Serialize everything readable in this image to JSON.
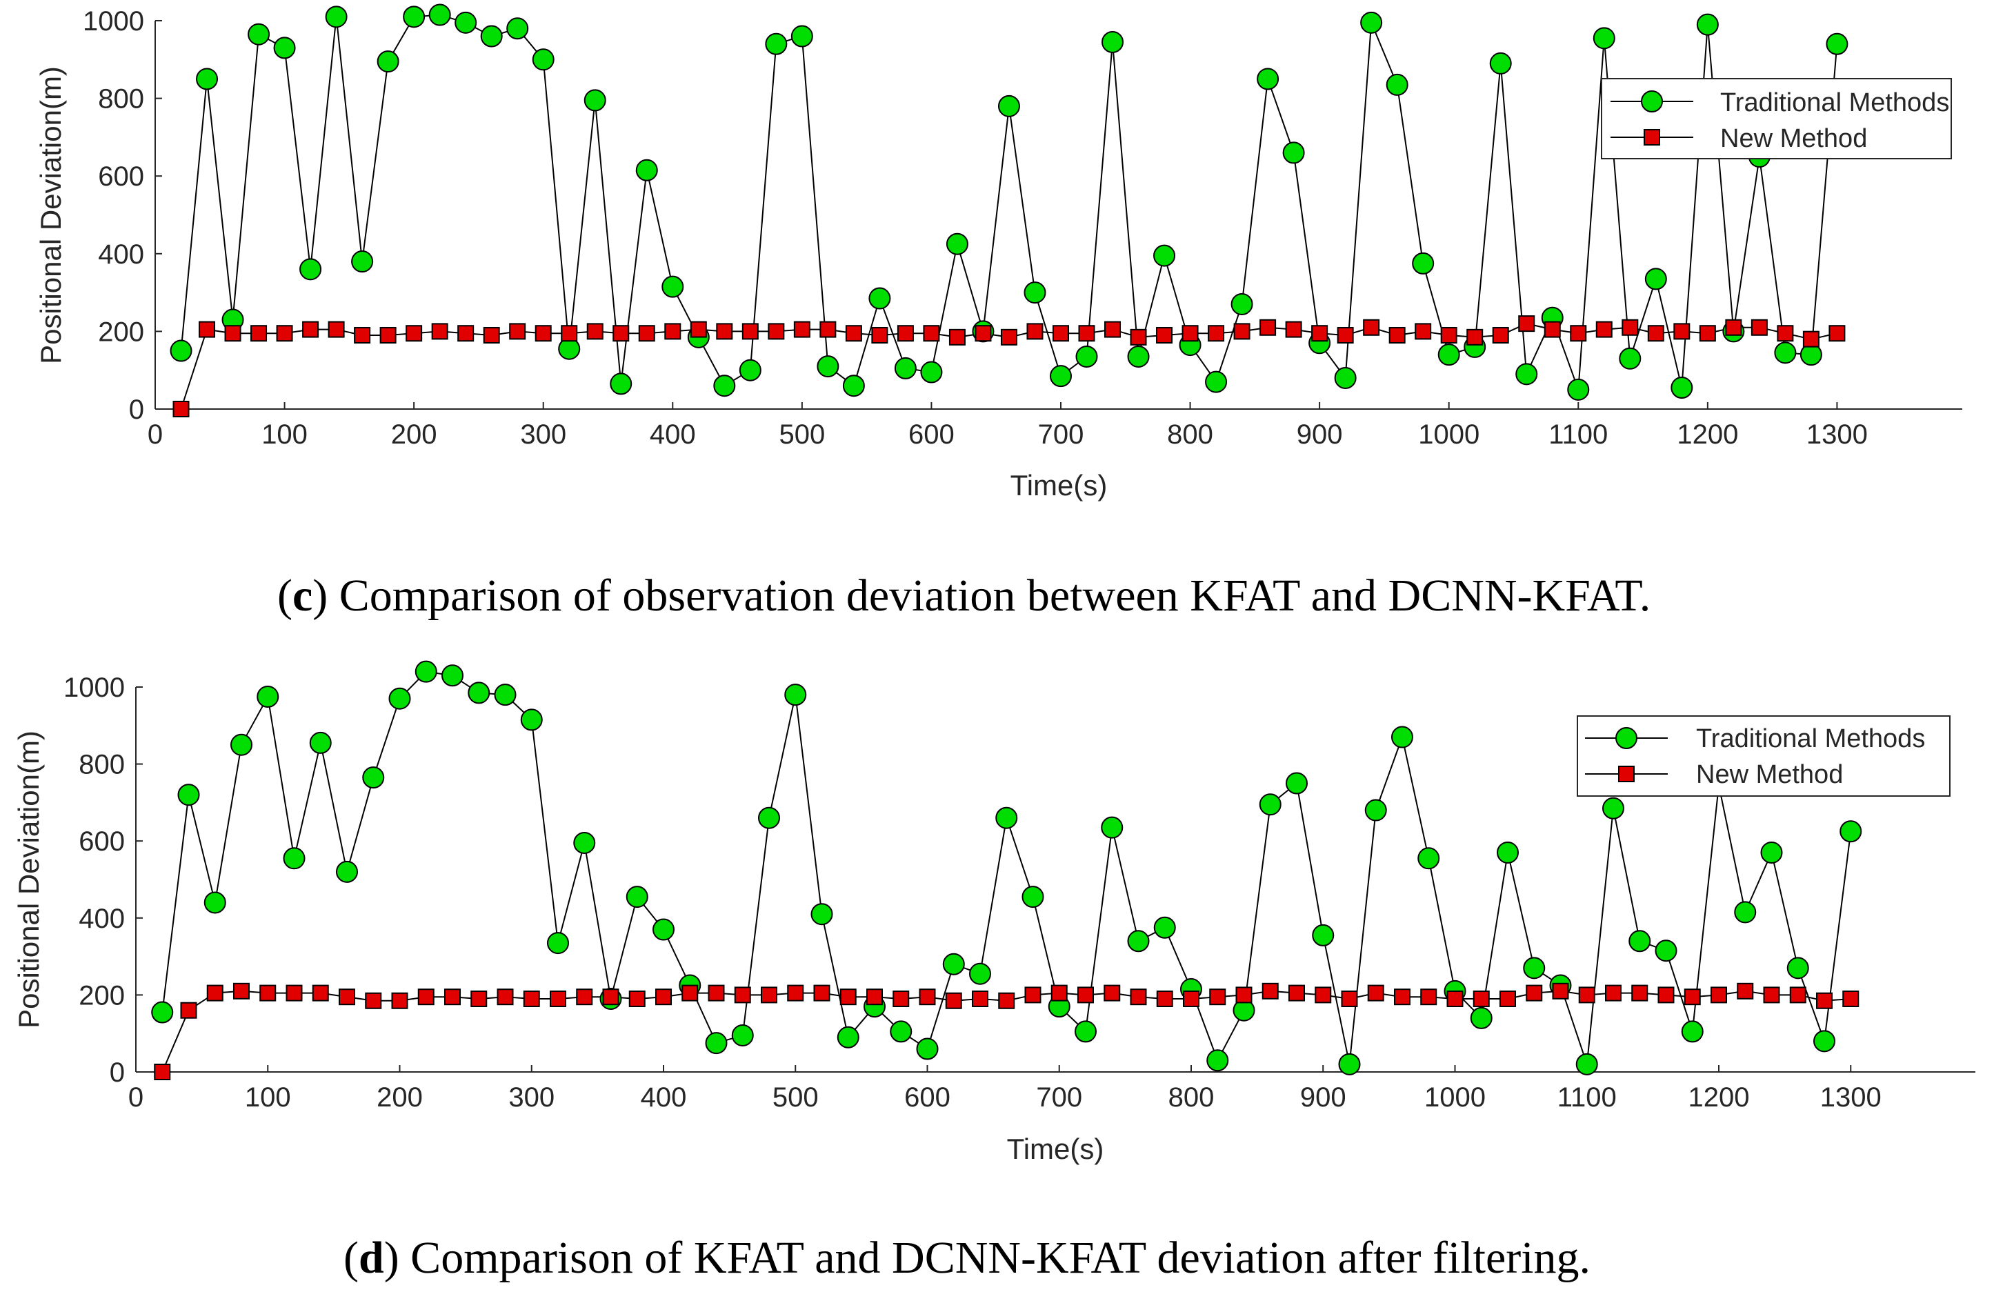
{
  "colors": {
    "traditional_fill": "#00dd00",
    "new_fill": "#e00000",
    "line": "#000000",
    "axis": "#262626"
  },
  "chart_data": [
    {
      "type": "line",
      "xlabel": "Time(s)",
      "ylabel": "Positional Deviation(m)",
      "xlim": [
        0,
        1400
      ],
      "ylim": [
        0,
        1000
      ],
      "xticks": [
        0,
        100,
        200,
        300,
        400,
        500,
        600,
        700,
        800,
        900,
        1000,
        1100,
        1200,
        1300
      ],
      "yticks": [
        0,
        200,
        400,
        600,
        800,
        1000
      ],
      "legend": [
        "Traditional Methods",
        "New Method"
      ],
      "caption": {
        "letter": "c",
        "text": ") Comparison of observation deviation between KFAT and DCNN-KFAT.",
        "open": "("
      },
      "series": [
        {
          "name": "Traditional Methods",
          "x": [
            20,
            40,
            60,
            80,
            100,
            120,
            140,
            160,
            180,
            200,
            220,
            240,
            260,
            280,
            300,
            320,
            340,
            360,
            380,
            400,
            420,
            440,
            460,
            480,
            500,
            520,
            540,
            560,
            580,
            600,
            620,
            640,
            660,
            680,
            700,
            720,
            740,
            760,
            780,
            800,
            820,
            840,
            860,
            880,
            900,
            920,
            940,
            960,
            980,
            1000,
            1020,
            1040,
            1060,
            1080,
            1100,
            1120,
            1140,
            1160,
            1180,
            1200,
            1220,
            1240,
            1260,
            1280,
            1300
          ],
          "values": [
            150,
            850,
            230,
            965,
            930,
            360,
            1010,
            380,
            895,
            1010,
            1015,
            995,
            960,
            980,
            900,
            155,
            795,
            65,
            615,
            315,
            185,
            60,
            100,
            940,
            960,
            110,
            60,
            285,
            105,
            95,
            425,
            200,
            780,
            300,
            85,
            135,
            945,
            135,
            395,
            165,
            70,
            270,
            850,
            660,
            170,
            80,
            995,
            835,
            375,
            140,
            160,
            890,
            90,
            235,
            50,
            955,
            130,
            335,
            55,
            990,
            200,
            650,
            145,
            140,
            940
          ]
        },
        {
          "name": "New Method",
          "x": [
            20,
            40,
            60,
            80,
            100,
            120,
            140,
            160,
            180,
            200,
            220,
            240,
            260,
            280,
            300,
            320,
            340,
            360,
            380,
            400,
            420,
            440,
            460,
            480,
            500,
            520,
            540,
            560,
            580,
            600,
            620,
            640,
            660,
            680,
            700,
            720,
            740,
            760,
            780,
            800,
            820,
            840,
            860,
            880,
            900,
            920,
            940,
            960,
            980,
            1000,
            1020,
            1040,
            1060,
            1080,
            1100,
            1120,
            1140,
            1160,
            1180,
            1200,
            1220,
            1240,
            1260,
            1280,
            1300
          ],
          "values": [
            0,
            205,
            195,
            195,
            195,
            205,
            205,
            190,
            190,
            195,
            200,
            195,
            190,
            200,
            195,
            195,
            200,
            195,
            195,
            200,
            205,
            200,
            200,
            200,
            205,
            205,
            195,
            190,
            195,
            195,
            185,
            195,
            185,
            200,
            195,
            195,
            205,
            185,
            190,
            195,
            195,
            200,
            210,
            205,
            195,
            190,
            210,
            190,
            200,
            190,
            185,
            190,
            220,
            205,
            195,
            205,
            210,
            195,
            200,
            195,
            210,
            210,
            195,
            180,
            195
          ]
        }
      ]
    },
    {
      "type": "line",
      "xlabel": "Time(s)",
      "ylabel": "Positional Deviation(m)",
      "xlim": [
        0,
        1400
      ],
      "ylim": [
        0,
        1000
      ],
      "xticks": [
        0,
        100,
        200,
        300,
        400,
        500,
        600,
        700,
        800,
        900,
        1000,
        1100,
        1200,
        1300
      ],
      "yticks": [
        0,
        200,
        400,
        600,
        800,
        1000
      ],
      "legend": [
        "Traditional Methods",
        "New Method"
      ],
      "caption": {
        "letter": "d",
        "text": ") Comparison of KFAT and DCNN-KFAT deviation after filtering.",
        "open": "("
      },
      "series": [
        {
          "name": "Traditional Methods",
          "x": [
            20,
            40,
            60,
            80,
            100,
            120,
            140,
            160,
            180,
            200,
            220,
            240,
            260,
            280,
            300,
            320,
            340,
            360,
            380,
            400,
            420,
            440,
            460,
            480,
            500,
            520,
            540,
            560,
            580,
            600,
            620,
            640,
            660,
            680,
            700,
            720,
            740,
            760,
            780,
            800,
            820,
            840,
            860,
            880,
            900,
            920,
            940,
            960,
            980,
            1000,
            1020,
            1040,
            1060,
            1080,
            1100,
            1120,
            1140,
            1160,
            1180,
            1200,
            1220,
            1240,
            1260,
            1280,
            1300
          ],
          "values": [
            155,
            720,
            440,
            850,
            975,
            555,
            855,
            520,
            765,
            970,
            1040,
            1030,
            985,
            980,
            915,
            335,
            595,
            190,
            455,
            370,
            225,
            75,
            95,
            660,
            980,
            410,
            90,
            170,
            105,
            60,
            280,
            255,
            660,
            455,
            170,
            105,
            635,
            340,
            375,
            215,
            30,
            160,
            695,
            750,
            355,
            20,
            680,
            870,
            555,
            210,
            140,
            570,
            270,
            225,
            20,
            685,
            340,
            315,
            105,
            745,
            415,
            570,
            270,
            80,
            625
          ]
        },
        {
          "name": "New Method",
          "x": [
            20,
            40,
            60,
            80,
            100,
            120,
            140,
            160,
            180,
            200,
            220,
            240,
            260,
            280,
            300,
            320,
            340,
            360,
            380,
            400,
            420,
            440,
            460,
            480,
            500,
            520,
            540,
            560,
            580,
            600,
            620,
            640,
            660,
            680,
            700,
            720,
            740,
            760,
            780,
            800,
            820,
            840,
            860,
            880,
            900,
            920,
            940,
            960,
            980,
            1000,
            1020,
            1040,
            1060,
            1080,
            1100,
            1120,
            1140,
            1160,
            1180,
            1200,
            1220,
            1240,
            1260,
            1280,
            1300
          ],
          "values": [
            0,
            160,
            205,
            210,
            205,
            205,
            205,
            195,
            185,
            185,
            195,
            195,
            190,
            195,
            190,
            190,
            195,
            195,
            190,
            195,
            205,
            205,
            200,
            200,
            205,
            205,
            195,
            195,
            190,
            195,
            185,
            190,
            185,
            200,
            205,
            200,
            205,
            195,
            190,
            190,
            195,
            200,
            210,
            205,
            200,
            190,
            205,
            195,
            195,
            190,
            190,
            190,
            205,
            210,
            200,
            205,
            205,
            200,
            195,
            200,
            210,
            200,
            200,
            185,
            190
          ]
        }
      ]
    }
  ]
}
